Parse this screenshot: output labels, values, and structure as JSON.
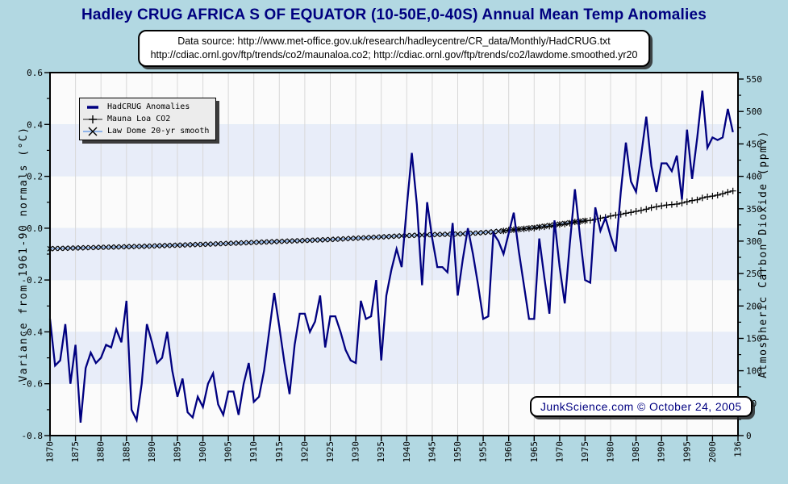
{
  "page": {
    "title": "Hadley CRUG AFRICA S OF EQUATOR (10-50E,0-40S) Annual Mean Temp Anomalies"
  },
  "source_box": {
    "line1": "Data source: http://www.met-office.gov.uk/research/hadleycentre/CR_data/Monthly/HadCRUG.txt",
    "line2": "http://cdiac.ornl.gov/ftp/trends/co2/maunaloa.co2; http://cdiac.ornl.gov/ftp/trends/co2/lawdome.smoothed.yr20"
  },
  "watermark": {
    "text": "JunkScience.com © October 24, 2005"
  },
  "legend": {
    "items": [
      {
        "label": "HadCRUG Anomalies"
      },
      {
        "label": "Mauna Loa CO2"
      },
      {
        "label": "Law Dome 20-yr smooth"
      }
    ]
  },
  "colors": {
    "page_bg": "#b2d8e2",
    "title": "#000080",
    "plot_bg": "#fbfbfb",
    "band": "#e8edf9",
    "gridline": "#d8d8d8",
    "frame": "#000000",
    "hadcrug": "#000080",
    "maunaloa_line": "#1a1a1a",
    "lawdome_line": "#8fb4ea",
    "marker": "#000000",
    "legend_bg": "#ececec",
    "watermark_text": "#000080"
  },
  "chart_data": {
    "type": "line",
    "title": "Hadley CRUG AFRICA S OF EQUATOR (10-50E,0-40S) Annual Mean Temp Anomalies",
    "grid": true,
    "legend_position": "top-left",
    "x_axis": {
      "label": "",
      "range": [
        1870,
        2005
      ],
      "tick_years": [
        1870,
        1875,
        1880,
        1885,
        1890,
        1895,
        1900,
        1905,
        1910,
        1915,
        1920,
        1925,
        1930,
        1935,
        1940,
        1945,
        1950,
        1955,
        1960,
        1965,
        1970,
        1975,
        1980,
        1985,
        1990,
        1995,
        2000,
        2005
      ],
      "tick_labels": [
        "1870",
        "1875",
        "1880",
        "1885",
        "1890",
        "1895",
        "1900",
        "1905",
        "1910",
        "1915",
        "1920",
        "1925",
        "1930",
        "1935",
        "1940",
        "1945",
        "1950",
        "1955",
        "1960",
        "1965",
        "1970",
        "1975",
        "1980",
        "1985",
        "1990",
        "1995",
        "2000",
        "136"
      ],
      "grid_years": [
        1875,
        1880,
        1885,
        1890,
        1895,
        1900,
        1905,
        1910,
        1915,
        1920,
        1925,
        1930,
        1935,
        1940,
        1945,
        1950,
        1955,
        1960,
        1965,
        1970,
        1975,
        1980,
        1985,
        1990,
        1995,
        2000
      ]
    },
    "left_axis": {
      "label": "Variance from 1961-90 normals (°C)",
      "range": [
        -0.8,
        0.6
      ],
      "tick_values": [
        0.6,
        0.4,
        0.2,
        0.0,
        -0.2,
        -0.4,
        -0.6,
        -0.8
      ],
      "tick_labels": [
        "0.6",
        "0.4",
        "0.2",
        "0.0",
        "-0.2",
        "-0.4",
        "-0.6",
        "-0.8"
      ],
      "minor_values": [
        0.5,
        0.3,
        0.1,
        -0.1,
        -0.3,
        -0.5,
        -0.7
      ]
    },
    "right_axis": {
      "label": "Atmospheric Carbon Dioxide (ppmv)",
      "range": [
        0,
        560
      ],
      "tick_values": [
        550,
        500,
        450,
        400,
        350,
        300,
        250,
        200,
        150,
        100,
        50,
        0
      ],
      "tick_labels": [
        "550",
        "500",
        "450",
        "400",
        "350",
        "300",
        "250",
        "200",
        "150",
        "100",
        "50",
        "0"
      ],
      "minor_values": [
        525,
        475,
        425,
        375,
        325,
        275,
        225,
        175,
        125,
        75,
        25
      ]
    },
    "series": [
      {
        "name": "HadCRUG Anomalies",
        "axis": "left",
        "marker": "none",
        "start_year": 1870,
        "values": [
          -0.35,
          -0.53,
          -0.51,
          -0.37,
          -0.6,
          -0.45,
          -0.75,
          -0.54,
          -0.48,
          -0.52,
          -0.5,
          -0.45,
          -0.46,
          -0.39,
          -0.44,
          -0.28,
          -0.7,
          -0.74,
          -0.6,
          -0.37,
          -0.44,
          -0.52,
          -0.5,
          -0.4,
          -0.55,
          -0.65,
          -0.58,
          -0.71,
          -0.73,
          -0.65,
          -0.69,
          -0.6,
          -0.56,
          -0.68,
          -0.72,
          -0.63,
          -0.63,
          -0.72,
          -0.6,
          -0.52,
          -0.67,
          -0.65,
          -0.55,
          -0.4,
          -0.25,
          -0.38,
          -0.52,
          -0.64,
          -0.45,
          -0.33,
          -0.33,
          -0.4,
          -0.36,
          -0.26,
          -0.46,
          -0.34,
          -0.34,
          -0.4,
          -0.47,
          -0.51,
          -0.52,
          -0.28,
          -0.35,
          -0.34,
          -0.2,
          -0.51,
          -0.26,
          -0.16,
          -0.08,
          -0.15,
          0.08,
          0.29,
          0.09,
          -0.22,
          0.1,
          -0.04,
          -0.15,
          -0.15,
          -0.17,
          0.02,
          -0.26,
          -0.12,
          0,
          -0.1,
          -0.22,
          -0.35,
          -0.34,
          -0.02,
          -0.05,
          -0.1,
          -0.02,
          0.06,
          -0.09,
          -0.22,
          -0.35,
          -0.35,
          -0.04,
          -0.19,
          -0.33,
          0.03,
          -0.15,
          -0.29,
          -0.06,
          0.15,
          -0.03,
          -0.2,
          -0.21,
          0.08,
          -0.01,
          0.04,
          -0.03,
          -0.09,
          0.14,
          0.33,
          0.18,
          0.14,
          0.28,
          0.43,
          0.24,
          0.14,
          0.25,
          0.25,
          0.22,
          0.28,
          0.11,
          0.38,
          0.19,
          0.35,
          0.53,
          0.31,
          0.35,
          0.34,
          0.35,
          0.46,
          0.37
        ]
      },
      {
        "name": "Mauna Loa CO2",
        "axis": "right",
        "marker": "plus",
        "start_year": 1959,
        "values": [
          315.9,
          316.9,
          317.6,
          318.5,
          319.0,
          319.6,
          320.0,
          321.4,
          322.2,
          323.0,
          324.6,
          325.7,
          326.3,
          327.5,
          329.7,
          330.2,
          331.1,
          332.0,
          333.8,
          335.4,
          336.8,
          338.7,
          340.1,
          341.4,
          343.0,
          344.4,
          346.0,
          347.4,
          349.2,
          351.6,
          353.0,
          354.4,
          355.6,
          356.4,
          357.1,
          358.8,
          360.8,
          362.6,
          363.7,
          366.6,
          368.3,
          369.5,
          371.0,
          373.1,
          375.6,
          377.4
        ]
      },
      {
        "name": "Law Dome 20-yr smooth",
        "axis": "right",
        "marker": "x",
        "start_year": 1870,
        "values": [
          288.4,
          288.6,
          288.8,
          289.0,
          289.2,
          289.4,
          289.6,
          289.8,
          290.0,
          290.2,
          290.4,
          290.6,
          290.8,
          291.0,
          291.2,
          291.4,
          291.6,
          291.8,
          292.0,
          292.2,
          292.5,
          292.8,
          293.0,
          293.3,
          293.5,
          293.8,
          294.0,
          294.3,
          294.5,
          294.8,
          295.0,
          295.3,
          295.6,
          295.9,
          296.2,
          296.5,
          296.8,
          297.1,
          297.4,
          297.7,
          298.0,
          298.3,
          298.6,
          298.9,
          299.2,
          299.5,
          299.8,
          300.1,
          300.4,
          300.7,
          301.0,
          301.3,
          301.6,
          301.9,
          302.2,
          302.5,
          302.9,
          303.3,
          303.7,
          304.1,
          304.5,
          304.9,
          305.3,
          305.7,
          306.1,
          306.5,
          306.9,
          307.3,
          307.7,
          308.1,
          308.5,
          308.8,
          309.1,
          309.4,
          309.7,
          310.0,
          310.2,
          310.4,
          310.6,
          310.8,
          311.0,
          311.3,
          311.7,
          312.1,
          312.6,
          313.2,
          313.8,
          314.5,
          315.2,
          315.9,
          316.7,
          317.5,
          318.3,
          319.2,
          320.1,
          321.0,
          322.0,
          323.0,
          324.1,
          325.2,
          326.3,
          327.4,
          328.5,
          329.6,
          330.7,
          331.8
        ]
      }
    ]
  }
}
